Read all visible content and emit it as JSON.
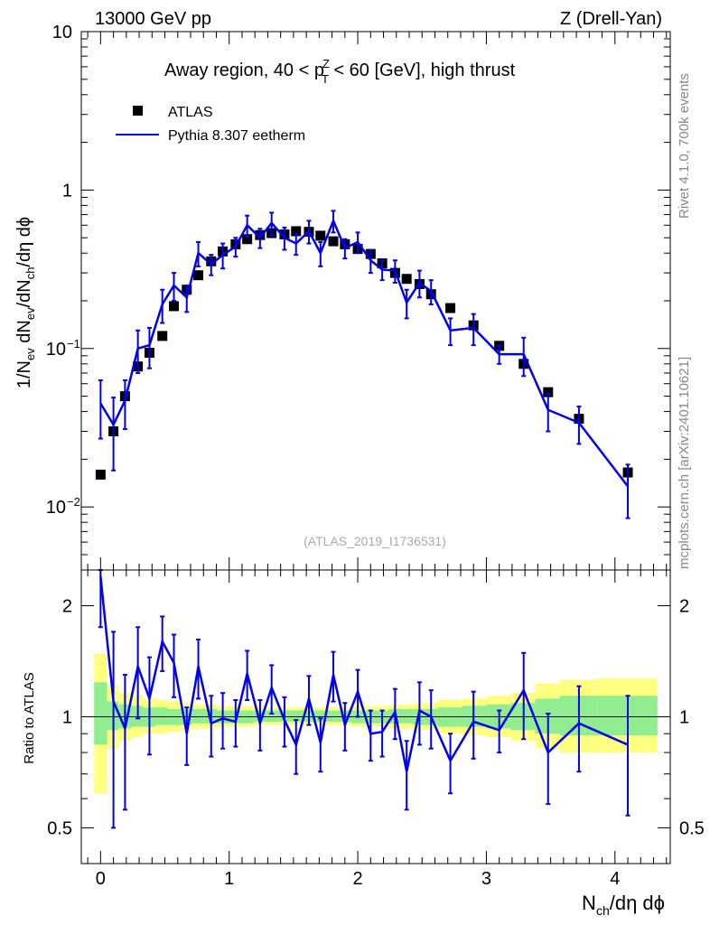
{
  "header": {
    "left": "13000 GeV pp",
    "right": "Z (Drell-Yan)"
  },
  "side_labels": {
    "rivet": "Rivet 4.1.0,  700k events",
    "mcplots": "mcplots.cern.ch [arXiv:2401.10621]"
  },
  "chart_data": [
    {
      "type": "scatter",
      "panel": "main",
      "title": "Away region, 40 < p_T^Z < 60 [GeV], high thrust",
      "title_parts": {
        "pre": "Away region, 40 < p",
        "sup": "Z",
        "sub": "T",
        "post": " < 60 [GeV], high thrust"
      },
      "ylabel": "1/N_ev dN_ev/dN_ch/dη dϕ",
      "ylabel_parts": {
        "a": "1/N",
        "a_sub": "ev",
        "b": " dN",
        "b_sub": "ev",
        "c": "/dN",
        "c_sub": "ch",
        "d": "/dη dϕ"
      },
      "yscale": "log",
      "ylim": [
        0.004,
        10
      ],
      "xlim": [
        -0.15,
        4.43
      ],
      "yticks": [
        {
          "value": 10,
          "label": "10"
        },
        {
          "value": 1,
          "label": "1"
        },
        {
          "value": 0.1,
          "label": "10",
          "exp": "−1"
        },
        {
          "value": 0.01,
          "label": "10",
          "exp": "−2"
        }
      ],
      "watermark": "(ATLAS_2019_I1736531)",
      "legend": {
        "position": "top-left",
        "entries": [
          "ATLAS",
          "Pythia 8.307 eetherm"
        ]
      },
      "series": [
        {
          "name": "ATLAS",
          "kind": "markers",
          "color": "#000000",
          "x": [
            0.0,
            0.1,
            0.19,
            0.29,
            0.38,
            0.48,
            0.57,
            0.67,
            0.76,
            0.86,
            0.95,
            1.05,
            1.14,
            1.24,
            1.33,
            1.43,
            1.52,
            1.62,
            1.71,
            1.81,
            1.9,
            2.0,
            2.1,
            2.19,
            2.29,
            2.38,
            2.48,
            2.57,
            2.72,
            2.9,
            3.1,
            3.29,
            3.48,
            3.72,
            4.1
          ],
          "y": [
            0.016,
            0.03,
            0.05,
            0.077,
            0.094,
            0.12,
            0.185,
            0.235,
            0.29,
            0.355,
            0.41,
            0.455,
            0.49,
            0.52,
            0.535,
            0.525,
            0.55,
            0.545,
            0.515,
            0.475,
            0.455,
            0.425,
            0.395,
            0.345,
            0.3,
            0.275,
            0.255,
            0.22,
            0.18,
            0.14,
            0.104,
            0.08,
            0.053,
            0.036,
            0.0165
          ]
        },
        {
          "name": "Pythia 8.307 eetherm",
          "kind": "line",
          "color": "#0000ee",
          "x": [
            0.0,
            0.1,
            0.19,
            0.29,
            0.38,
            0.48,
            0.57,
            0.67,
            0.76,
            0.86,
            0.95,
            1.05,
            1.14,
            1.24,
            1.33,
            1.43,
            1.52,
            1.62,
            1.71,
            1.81,
            1.9,
            2.0,
            2.1,
            2.19,
            2.29,
            2.38,
            2.48,
            2.57,
            2.72,
            2.9,
            3.1,
            3.29,
            3.48,
            3.72,
            4.1
          ],
          "y": [
            0.045,
            0.033,
            0.047,
            0.1,
            0.105,
            0.19,
            0.25,
            0.21,
            0.4,
            0.34,
            0.39,
            0.44,
            0.6,
            0.5,
            0.62,
            0.5,
            0.46,
            0.55,
            0.4,
            0.64,
            0.43,
            0.47,
            0.36,
            0.315,
            0.31,
            0.195,
            0.26,
            0.23,
            0.13,
            0.135,
            0.092,
            0.092,
            0.041,
            0.034,
            0.0135
          ],
          "err": [
            0.018,
            0.016,
            0.016,
            0.03,
            0.03,
            0.045,
            0.05,
            0.04,
            0.07,
            0.05,
            0.07,
            0.06,
            0.09,
            0.07,
            0.1,
            0.08,
            0.07,
            0.09,
            0.07,
            0.1,
            0.06,
            0.07,
            0.06,
            0.045,
            0.05,
            0.04,
            0.05,
            0.04,
            0.025,
            0.03,
            0.012,
            0.025,
            0.011,
            0.009,
            0.005
          ]
        }
      ]
    },
    {
      "type": "line",
      "panel": "ratio",
      "ylabel": "Ratio to ATLAS",
      "yscale": "log",
      "ylim": [
        0.4,
        2.5
      ],
      "xlim": [
        -0.15,
        4.43
      ],
      "xlabel": "N_ch/dη dϕ",
      "xlabel_parts": {
        "a": "N",
        "a_sub": "ch",
        "b": "/dη dϕ"
      },
      "yticks": [
        {
          "value": 0.5,
          "label": "0.5"
        },
        {
          "value": 1,
          "label": "1"
        },
        {
          "value": 2,
          "label": "2"
        }
      ],
      "xticks": [
        {
          "value": 0,
          "label": "0"
        },
        {
          "value": 1,
          "label": "1"
        },
        {
          "value": 2,
          "label": "2"
        },
        {
          "value": 3,
          "label": "3"
        },
        {
          "value": 4,
          "label": "4"
        }
      ],
      "reference_line": 1,
      "uncertainty_bands": {
        "edges": [
          -0.05,
          0.05,
          0.14,
          0.24,
          0.33,
          0.43,
          0.52,
          0.62,
          0.71,
          0.81,
          0.9,
          1.0,
          1.09,
          1.19,
          1.28,
          1.38,
          1.47,
          1.57,
          1.66,
          1.76,
          1.85,
          1.95,
          2.05,
          2.14,
          2.24,
          2.33,
          2.43,
          2.52,
          2.62,
          2.81,
          3.0,
          3.19,
          3.38,
          3.57,
          3.86,
          4.33
        ],
        "yellow_lo": [
          0.62,
          0.82,
          0.86,
          0.88,
          0.9,
          0.9,
          0.91,
          0.92,
          0.93,
          0.93,
          0.94,
          0.94,
          0.94,
          0.95,
          0.95,
          0.95,
          0.95,
          0.95,
          0.95,
          0.95,
          0.95,
          0.94,
          0.94,
          0.94,
          0.93,
          0.93,
          0.92,
          0.92,
          0.9,
          0.89,
          0.88,
          0.86,
          0.82,
          0.8,
          0.8
        ],
        "yellow_hi": [
          1.48,
          1.22,
          1.16,
          1.14,
          1.12,
          1.11,
          1.1,
          1.09,
          1.08,
          1.08,
          1.07,
          1.07,
          1.07,
          1.06,
          1.06,
          1.06,
          1.06,
          1.06,
          1.06,
          1.06,
          1.06,
          1.07,
          1.07,
          1.07,
          1.08,
          1.08,
          1.09,
          1.09,
          1.11,
          1.12,
          1.14,
          1.16,
          1.23,
          1.26,
          1.27
        ],
        "green_lo": [
          0.84,
          0.92,
          0.93,
          0.94,
          0.94,
          0.95,
          0.95,
          0.95,
          0.96,
          0.96,
          0.96,
          0.96,
          0.96,
          0.97,
          0.97,
          0.97,
          0.97,
          0.97,
          0.97,
          0.97,
          0.97,
          0.96,
          0.96,
          0.96,
          0.96,
          0.96,
          0.95,
          0.95,
          0.94,
          0.94,
          0.93,
          0.92,
          0.9,
          0.89,
          0.89
        ],
        "green_hi": [
          1.24,
          1.1,
          1.08,
          1.07,
          1.06,
          1.06,
          1.05,
          1.05,
          1.05,
          1.05,
          1.04,
          1.04,
          1.04,
          1.04,
          1.04,
          1.04,
          1.04,
          1.04,
          1.04,
          1.04,
          1.04,
          1.04,
          1.04,
          1.04,
          1.05,
          1.05,
          1.05,
          1.05,
          1.06,
          1.07,
          1.08,
          1.09,
          1.12,
          1.14,
          1.14
        ]
      },
      "series": [
        {
          "name": "Pythia 8.307 eetherm / ATLAS",
          "color": "#0000ee",
          "x": [
            0.0,
            0.1,
            0.19,
            0.29,
            0.38,
            0.48,
            0.57,
            0.67,
            0.76,
            0.86,
            0.95,
            1.05,
            1.14,
            1.24,
            1.33,
            1.43,
            1.52,
            1.62,
            1.71,
            1.81,
            1.9,
            2.0,
            2.1,
            2.19,
            2.29,
            2.38,
            2.48,
            2.57,
            2.72,
            2.9,
            3.1,
            3.29,
            3.48,
            3.72,
            4.1
          ],
          "y": [
            2.4,
            1.1,
            0.93,
            1.37,
            1.12,
            1.6,
            1.4,
            0.9,
            1.37,
            0.96,
            0.99,
            0.97,
            1.31,
            0.96,
            1.2,
            0.98,
            0.84,
            1.12,
            0.85,
            1.3,
            0.95,
            1.17,
            0.9,
            0.91,
            1.03,
            0.71,
            1.04,
            1.0,
            0.76,
            0.97,
            0.92,
            1.18,
            0.8,
            0.96,
            0.84
          ],
          "err": [
            0.65,
            0.6,
            0.37,
            0.38,
            0.33,
            0.27,
            0.27,
            0.16,
            0.25,
            0.18,
            0.17,
            0.14,
            0.2,
            0.15,
            0.18,
            0.15,
            0.14,
            0.17,
            0.14,
            0.2,
            0.14,
            0.17,
            0.14,
            0.13,
            0.16,
            0.15,
            0.2,
            0.18,
            0.14,
            0.2,
            0.12,
            0.31,
            0.22,
            0.25,
            0.3
          ]
        }
      ]
    }
  ]
}
